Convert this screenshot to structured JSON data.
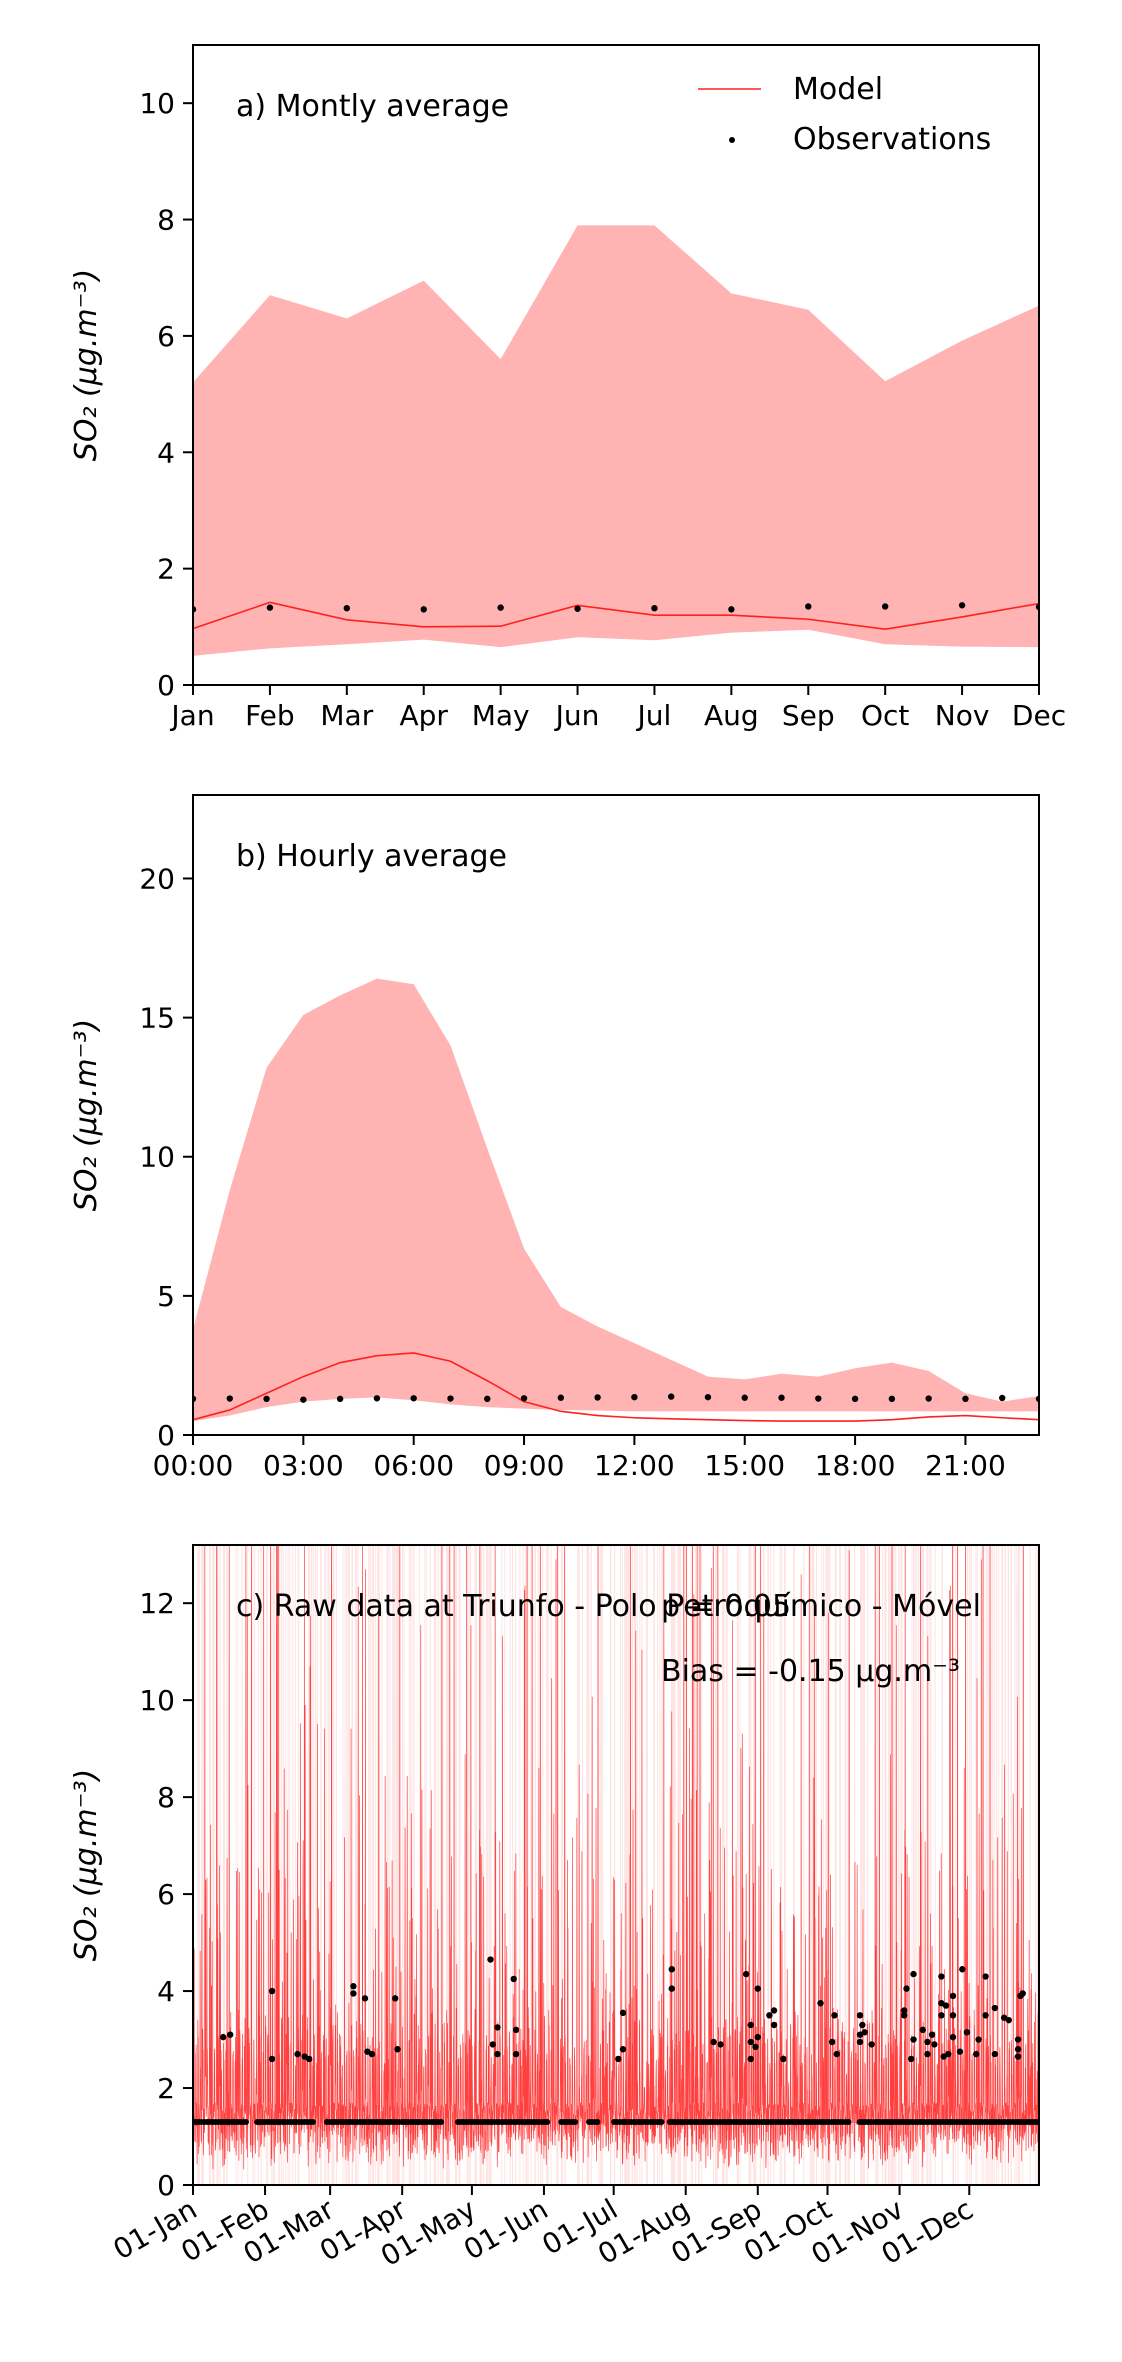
{
  "chart_data": [
    {
      "type": "area",
      "panel_label": "a) Montly average",
      "ylabel": "SO₂ (μg.m⁻³)",
      "categories": [
        "Jan",
        "Feb",
        "Mar",
        "Apr",
        "May",
        "Jun",
        "Jul",
        "Aug",
        "Sep",
        "Oct",
        "Nov",
        "Dec"
      ],
      "ylim": [
        0,
        11
      ],
      "yticks": [
        0,
        2,
        4,
        6,
        8,
        10
      ],
      "legend": {
        "placement": "top-right",
        "model_label": "Model",
        "obs_label": "Observations"
      },
      "series": [
        {
          "name": "Model",
          "kind": "line",
          "values": [
            0.97,
            1.42,
            1.12,
            1.0,
            1.01,
            1.37,
            1.2,
            1.2,
            1.13,
            0.96,
            1.17,
            1.4
          ]
        },
        {
          "name": "Observations",
          "kind": "scatter",
          "values": [
            1.3,
            1.33,
            1.32,
            1.3,
            1.33,
            1.31,
            1.32,
            1.3,
            1.35,
            1.35,
            1.37,
            1.34
          ]
        },
        {
          "kind": "range",
          "upper": [
            5.2,
            6.7,
            6.3,
            6.95,
            5.6,
            7.9,
            7.9,
            6.73,
            6.45,
            5.22,
            5.92,
            6.52
          ],
          "lower": [
            0.5,
            0.63,
            0.7,
            0.78,
            0.65,
            0.82,
            0.77,
            0.9,
            0.95,
            0.7,
            0.66,
            0.65
          ]
        }
      ]
    },
    {
      "type": "area",
      "panel_label": "b) Hourly average",
      "ylabel": "SO₂ (μg.m⁻³)",
      "x": [
        0,
        1,
        2,
        3,
        4,
        5,
        6,
        7,
        8,
        9,
        10,
        11,
        12,
        13,
        14,
        15,
        16,
        17,
        18,
        19,
        20,
        21,
        22,
        23
      ],
      "xtick_labels": [
        "00:00",
        "03:00",
        "06:00",
        "09:00",
        "12:00",
        "15:00",
        "18:00",
        "21:00"
      ],
      "xtick_hours": [
        0,
        3,
        6,
        9,
        12,
        15,
        18,
        21
      ],
      "ylim": [
        0,
        23
      ],
      "yticks": [
        0,
        5,
        10,
        15,
        20
      ],
      "series": [
        {
          "name": "Model",
          "kind": "line",
          "values": [
            0.55,
            0.9,
            1.5,
            2.1,
            2.6,
            2.85,
            2.95,
            2.65,
            1.95,
            1.2,
            0.85,
            0.7,
            0.62,
            0.58,
            0.55,
            0.52,
            0.5,
            0.5,
            0.5,
            0.55,
            0.65,
            0.7,
            0.62,
            0.55
          ]
        },
        {
          "name": "Observations",
          "kind": "scatter",
          "values": [
            1.3,
            1.31,
            1.3,
            1.27,
            1.3,
            1.32,
            1.32,
            1.31,
            1.3,
            1.32,
            1.34,
            1.35,
            1.36,
            1.38,
            1.36,
            1.34,
            1.34,
            1.31,
            1.3,
            1.3,
            1.31,
            1.3,
            1.33,
            1.3
          ]
        },
        {
          "kind": "range",
          "upper": [
            3.8,
            8.8,
            13.2,
            15.1,
            15.8,
            16.4,
            16.2,
            14.0,
            10.3,
            6.7,
            4.6,
            3.9,
            3.3,
            2.7,
            2.1,
            2.0,
            2.2,
            2.1,
            2.4,
            2.6,
            2.3,
            1.5,
            1.2,
            1.4
          ],
          "lower": [
            0.5,
            0.7,
            1.0,
            1.2,
            1.3,
            1.35,
            1.25,
            1.1,
            1.0,
            0.95,
            0.9,
            0.88,
            0.85,
            0.85,
            0.85,
            0.85,
            0.85,
            0.85,
            0.85,
            0.85,
            0.85,
            0.85,
            0.85,
            0.85
          ]
        }
      ]
    },
    {
      "type": "line",
      "panel_label": "c) Raw data at Triunfo - Polo Petroquímico - Móvel",
      "annotations": [
        "p = 0.05",
        "Bias = -0.15 μg.m⁻³"
      ],
      "ylabel": "SO₂ (μg.m⁻³)",
      "xlim_days": [
        0,
        364
      ],
      "xtick_labels": [
        "01-Jan",
        "01-Feb",
        "01-Mar",
        "01-Apr",
        "01-May",
        "01-Jun",
        "01-Jul",
        "01-Aug",
        "01-Sep",
        "01-Oct",
        "01-Nov",
        "01-Dec"
      ],
      "xtick_days": [
        0,
        31,
        59,
        90,
        120,
        151,
        181,
        212,
        243,
        273,
        304,
        334
      ],
      "ylim": [
        0,
        13.2
      ],
      "yticks": [
        0,
        2,
        4,
        6,
        8,
        10,
        12
      ],
      "series": [
        {
          "name": "Model",
          "kind": "line",
          "description_values": "hourly model series, mostly 0–2 with frequent spikes above 13"
        },
        {
          "name": "Observations",
          "kind": "scatter",
          "baseline": 1.3,
          "points": [
            [
              13,
              3.05
            ],
            [
              16,
              3.1
            ],
            [
              34,
              4.0
            ],
            [
              34,
              2.6
            ],
            [
              45,
              2.7
            ],
            [
              48,
              2.65
            ],
            [
              50,
              2.6
            ],
            [
              69,
              4.1
            ],
            [
              69,
              3.95
            ],
            [
              74,
              3.85
            ],
            [
              75,
              2.75
            ],
            [
              77,
              2.7
            ],
            [
              87,
              3.85
            ],
            [
              88,
              2.8
            ],
            [
              128,
              4.65
            ],
            [
              129,
              2.9
            ],
            [
              131,
              3.25
            ],
            [
              131,
              2.7
            ],
            [
              138,
              4.25
            ],
            [
              139,
              3.2
            ],
            [
              139,
              2.7
            ],
            [
              183,
              2.6
            ],
            [
              185,
              3.55
            ],
            [
              185,
              2.8
            ],
            [
              206,
              4.45
            ],
            [
              206,
              4.05
            ],
            [
              224,
              2.95
            ],
            [
              227,
              2.9
            ],
            [
              238,
              4.35
            ],
            [
              240,
              3.3
            ],
            [
              240,
              2.95
            ],
            [
              240,
              2.6
            ],
            [
              243,
              4.05
            ],
            [
              242,
              2.85
            ],
            [
              243,
              3.05
            ],
            [
              248,
              3.5
            ],
            [
              250,
              3.6
            ],
            [
              250,
              3.3
            ],
            [
              254,
              2.6
            ],
            [
              270,
              3.75
            ],
            [
              275,
              2.95
            ],
            [
              276,
              3.5
            ],
            [
              277,
              2.7
            ],
            [
              287,
              3.5
            ],
            [
              287,
              3.1
            ],
            [
              287,
              2.95
            ],
            [
              288,
              3.3
            ],
            [
              289,
              3.15
            ],
            [
              292,
              2.9
            ],
            [
              306,
              3.6
            ],
            [
              307,
              4.05
            ],
            [
              306,
              3.5
            ],
            [
              309,
              2.6
            ],
            [
              310,
              4.35
            ],
            [
              310,
              3.0
            ],
            [
              314,
              3.2
            ],
            [
              316,
              2.7
            ],
            [
              316,
              2.95
            ],
            [
              318,
              3.1
            ],
            [
              319,
              2.9
            ],
            [
              322,
              4.3
            ],
            [
              322,
              3.75
            ],
            [
              322,
              3.5
            ],
            [
              323,
              2.65
            ],
            [
              324,
              3.7
            ],
            [
              325,
              2.7
            ],
            [
              327,
              3.9
            ],
            [
              327,
              3.5
            ],
            [
              327,
              3.05
            ],
            [
              330,
              2.75
            ],
            [
              331,
              4.45
            ],
            [
              333,
              3.15
            ],
            [
              337,
              2.7
            ],
            [
              338,
              3.0
            ],
            [
              341,
              4.3
            ],
            [
              341,
              3.5
            ],
            [
              345,
              3.65
            ],
            [
              345,
              2.7
            ],
            [
              349,
              3.45
            ],
            [
              351,
              3.4
            ],
            [
              355,
              2.8
            ],
            [
              355,
              2.65
            ],
            [
              357,
              3.95
            ],
            [
              356,
              3.9
            ],
            [
              355,
              3.0
            ]
          ],
          "gaps_days": [
            [
              23,
              27
            ],
            [
              52,
              57
            ],
            [
              107,
              113
            ],
            [
              153,
              158
            ],
            [
              165,
              170
            ],
            [
              175,
              180
            ],
            [
              202,
              205
            ],
            [
              283,
              286
            ]
          ]
        }
      ]
    }
  ],
  "colors": {
    "model": "#ff2020",
    "band": "#ffb3b3",
    "obs": "#000000",
    "axis": "#000000"
  }
}
